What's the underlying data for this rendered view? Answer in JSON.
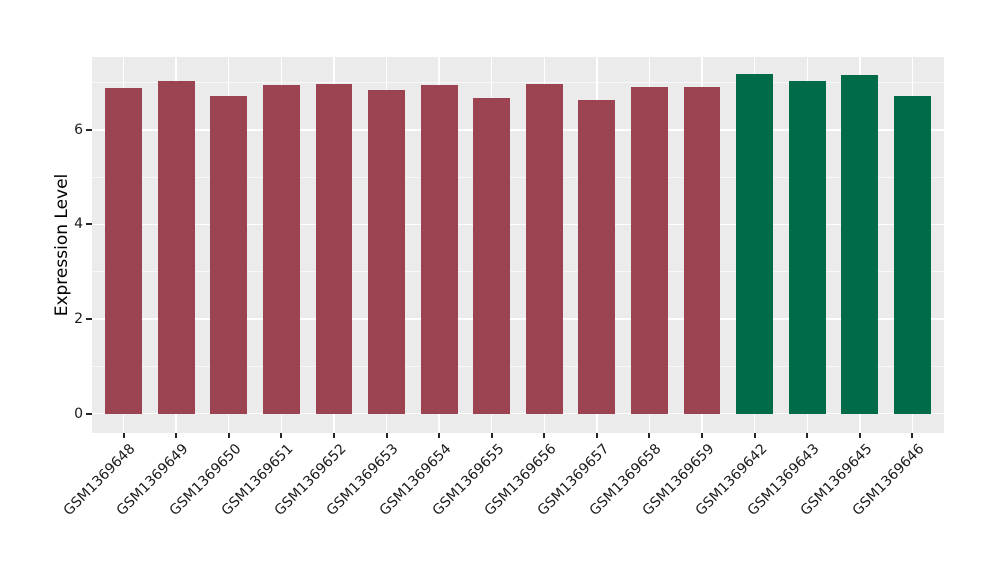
{
  "figure": {
    "background": "#FFFFFF",
    "panel_background": "#EBEBEB",
    "gridline_color": "#FFFFFF",
    "tick_color": "#262626",
    "text_color": "#1A1A1A"
  },
  "chart_data": {
    "type": "bar",
    "title": "",
    "xlabel": "",
    "ylabel": "Expression Level",
    "ylim": [
      -0.41,
      7.54
    ],
    "y_major_ticks": [
      0,
      2,
      4,
      6
    ],
    "y_minor_gridlines": [
      1,
      3,
      5,
      7
    ],
    "grid": "on",
    "legend": "none",
    "bar_width_fraction": 0.7,
    "x_label_rotation_deg": 45,
    "colors": {
      "red": "#9B4350",
      "green": "#006B48"
    },
    "bars": [
      {
        "label": "GSM1369648",
        "value": 6.88,
        "group": "red"
      },
      {
        "label": "GSM1369649",
        "value": 7.03,
        "group": "red"
      },
      {
        "label": "GSM1369650",
        "value": 6.71,
        "group": "red"
      },
      {
        "label": "GSM1369651",
        "value": 6.95,
        "group": "red"
      },
      {
        "label": "GSM1369652",
        "value": 6.97,
        "group": "red"
      },
      {
        "label": "GSM1369653",
        "value": 6.84,
        "group": "red"
      },
      {
        "label": "GSM1369654",
        "value": 6.94,
        "group": "red"
      },
      {
        "label": "GSM1369655",
        "value": 6.68,
        "group": "red"
      },
      {
        "label": "GSM1369656",
        "value": 6.96,
        "group": "red"
      },
      {
        "label": "GSM1369657",
        "value": 6.63,
        "group": "red"
      },
      {
        "label": "GSM1369658",
        "value": 6.9,
        "group": "red"
      },
      {
        "label": "GSM1369659",
        "value": 6.9,
        "group": "red"
      },
      {
        "label": "GSM1369642",
        "value": 7.17,
        "group": "green"
      },
      {
        "label": "GSM1369643",
        "value": 7.04,
        "group": "green"
      },
      {
        "label": "GSM1369645",
        "value": 7.15,
        "group": "green"
      },
      {
        "label": "GSM1369646",
        "value": 6.71,
        "group": "green"
      }
    ]
  }
}
